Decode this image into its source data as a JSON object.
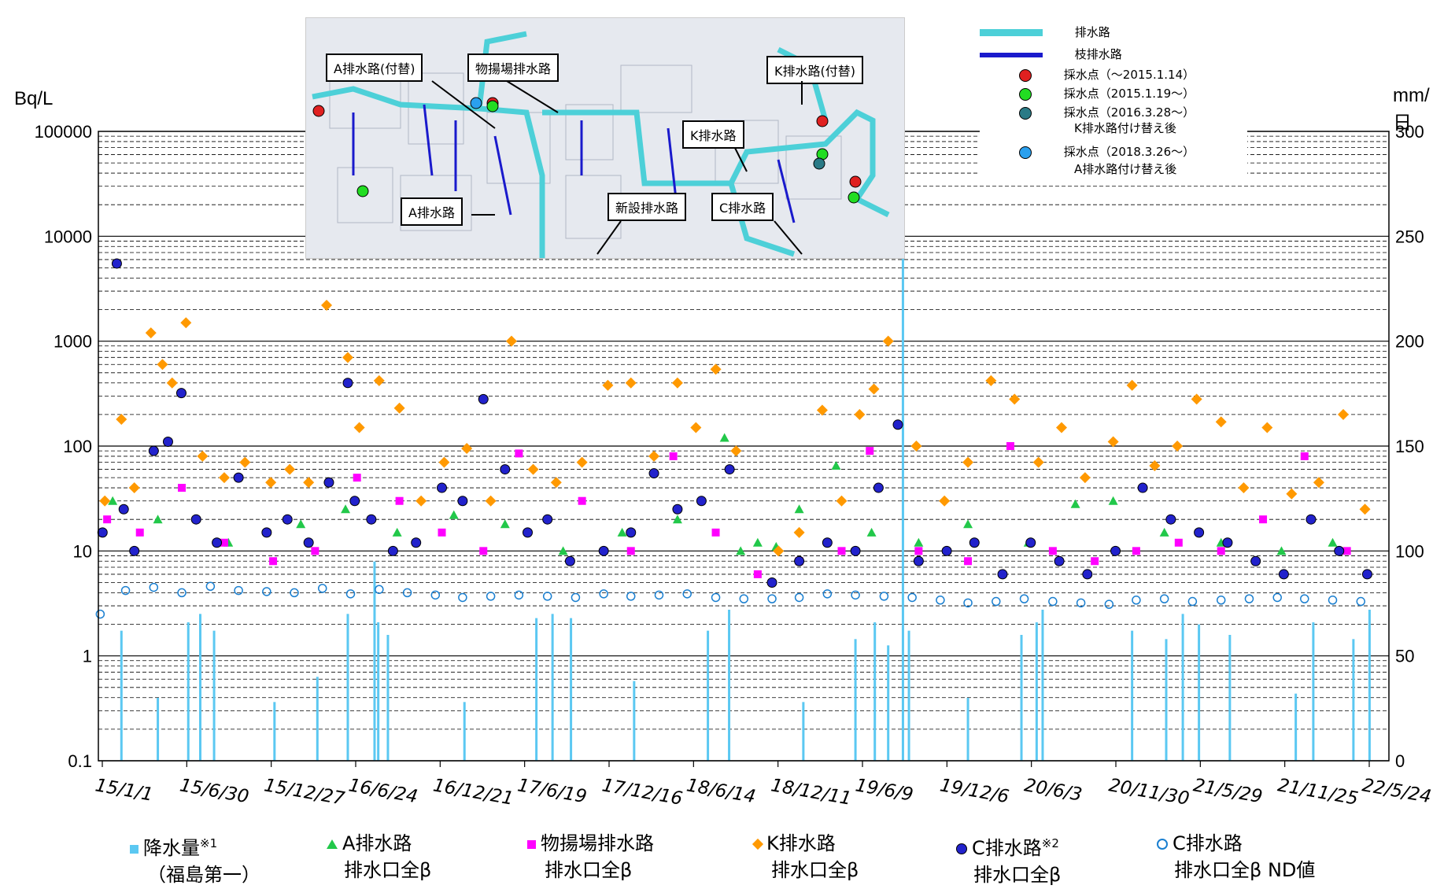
{
  "axes": {
    "left_unit": "Bq/L",
    "right_unit": "mm/日",
    "left_ticks": [
      "0.1",
      "1",
      "10",
      "100",
      "1000",
      "10000",
      "100000"
    ],
    "right_ticks": [
      "0",
      "50",
      "100",
      "150",
      "200",
      "250",
      "300"
    ],
    "x_ticks": [
      "15/1/1",
      "15/6/30",
      "15/12/27",
      "16/6/24",
      "16/12/21",
      "17/6/19",
      "17/12/16",
      "18/6/14",
      "18/12/11",
      "19/6/9",
      "19/12/6",
      "20/6/3",
      "20/11/30",
      "21/5/29",
      "21/11/25",
      "22/5/24"
    ]
  },
  "legend": [
    {
      "line1": "降水量",
      "sup": "※1",
      "line2": "（福島第一）",
      "color": "#5bc8f2",
      "shape": "square"
    },
    {
      "line1": "A排水路",
      "sup": "",
      "line2": "排水口全β",
      "color": "#22c84a",
      "shape": "triangle"
    },
    {
      "line1": "物揚場排水路",
      "sup": "",
      "line2": "排水口全β",
      "color": "#ff00ff",
      "shape": "square"
    },
    {
      "line1": "K排水路",
      "sup": "",
      "line2": "排水口全β",
      "color": "#ff9900",
      "shape": "diamond"
    },
    {
      "line1": "C排水路",
      "sup": "※2",
      "line2": "排水口全β",
      "color": "#2222cc",
      "shape": "circle"
    },
    {
      "line1": "C排水路",
      "sup": "",
      "line2": "排水口全β ND値",
      "color": "#1a7fd0",
      "shape": "circle-open"
    }
  ],
  "inset": {
    "callouts": [
      "A排水路(付替)",
      "物揚場排水路",
      "K排水路(付替)",
      "K排水路",
      "A排水路",
      "新設排水路",
      "C排水路"
    ],
    "legend": [
      {
        "label": "排水路",
        "color": "#4dd0d8",
        "kind": "line"
      },
      {
        "label": "枝排水路",
        "color": "#1a1acc",
        "kind": "line"
      },
      {
        "label": "採水点（～2015.1.14）",
        "color": "#e02020",
        "kind": "dot"
      },
      {
        "label": "採水点（2015.1.19～）",
        "color": "#22dd22",
        "kind": "dot"
      },
      {
        "label": "採水点（2016.3.28～）",
        "sub": "K排水路付け替え後",
        "color": "#2a7a86",
        "kind": "dot"
      },
      {
        "label": "採水点（2018.3.26～）",
        "sub": "A排水路付け替え後",
        "color": "#2aa0ee",
        "kind": "dot"
      }
    ]
  },
  "chart_data": {
    "type": "scatter",
    "y_scale": "log",
    "ylim": [
      0.1,
      100000
    ],
    "y2lim": [
      0,
      300
    ],
    "xlim": [
      "2015-01-01",
      "2022-08-31"
    ],
    "series": [
      {
        "name": "降水量",
        "axis": "right",
        "type": "bar",
        "color": "#5bc8f2",
        "x": [
          "2015-02-20",
          "2015-05-10",
          "2015-07-15",
          "2015-08-10",
          "2015-09-09",
          "2016-01-18",
          "2016-04-20",
          "2016-06-25",
          "2016-08-22",
          "2016-08-30",
          "2016-09-20",
          "2017-03-05",
          "2017-08-08",
          "2017-09-12",
          "2017-10-22",
          "2018-03-08",
          "2018-08-15",
          "2018-09-30",
          "2019-03-10",
          "2019-07-01",
          "2019-08-12",
          "2019-09-10",
          "2019-10-12",
          "2019-10-25",
          "2020-03-01",
          "2020-06-25",
          "2020-07-28",
          "2020-08-10",
          "2021-02-20",
          "2021-05-05",
          "2021-06-10",
          "2021-07-15",
          "2021-09-20",
          "2022-02-10",
          "2022-03-20",
          "2022-06-15",
          "2022-07-20"
        ],
        "values": [
          62,
          30,
          66,
          70,
          62,
          28,
          40,
          70,
          95,
          66,
          60,
          28,
          68,
          70,
          68,
          38,
          62,
          72,
          28,
          58,
          66,
          55,
          250,
          62,
          30,
          60,
          66,
          72,
          62,
          58,
          70,
          65,
          60,
          32,
          66,
          58,
          72
        ]
      },
      {
        "name": "A排水路 排水口全β",
        "axis": "left",
        "type": "scatter",
        "color": "#22c84a",
        "marker": "triangle",
        "x": [
          "2015-02-01",
          "2015-05-10",
          "2015-10-10",
          "2016-03-15",
          "2016-06-20",
          "2016-10-10",
          "2017-02-10",
          "2017-06-01",
          "2017-10-05",
          "2018-02-10",
          "2018-06-10",
          "2018-09-20",
          "2018-10-25",
          "2018-12-01",
          "2019-01-10",
          "2019-03-01",
          "2019-05-20",
          "2019-08-05",
          "2019-11-15",
          "2020-03-01",
          "2020-07-10",
          "2020-10-20",
          "2021-01-10",
          "2021-05-01",
          "2021-09-01",
          "2022-01-10",
          "2022-05-01"
        ],
        "values": [
          30,
          20,
          12,
          18,
          25,
          15,
          22,
          18,
          10,
          15,
          20,
          120,
          10,
          12,
          11,
          25,
          65,
          15,
          12,
          18,
          12,
          28,
          30,
          15,
          12,
          10,
          12
        ]
      },
      {
        "name": "物揚場排水路 排水口全β",
        "axis": "left",
        "type": "scatter",
        "color": "#ff00ff",
        "marker": "square",
        "x": [
          "2015-01-20",
          "2015-04-01",
          "2015-07-01",
          "2015-10-01",
          "2016-01-15",
          "2016-04-15",
          "2016-07-15",
          "2016-10-15",
          "2017-01-15",
          "2017-04-15",
          "2017-07-01",
          "2017-11-15",
          "2018-03-01",
          "2018-06-01",
          "2018-09-01",
          "2018-12-01",
          "2019-03-01",
          "2019-06-01",
          "2019-08-01",
          "2019-11-15",
          "2020-03-01",
          "2020-06-01",
          "2020-09-01",
          "2020-12-01",
          "2021-03-01",
          "2021-06-01",
          "2021-09-01",
          "2021-12-01",
          "2022-03-01",
          "2022-06-01"
        ],
        "values": [
          20,
          15,
          40,
          12,
          8,
          10,
          50,
          30,
          15,
          10,
          85,
          30,
          10,
          80,
          15,
          6,
          8,
          10,
          90,
          10,
          8,
          100,
          10,
          8,
          10,
          12,
          10,
          20,
          80,
          10
        ]
      },
      {
        "name": "K排水路 排水口全β",
        "axis": "left",
        "type": "scatter",
        "color": "#ff9900",
        "marker": "diamond",
        "x": [
          "2015-01-15",
          "2015-02-20",
          "2015-03-20",
          "2015-04-25",
          "2015-05-20",
          "2015-06-10",
          "2015-07-10",
          "2015-08-15",
          "2015-10-01",
          "2015-11-15",
          "2016-01-10",
          "2016-02-20",
          "2016-04-01",
          "2016-05-10",
          "2016-06-25",
          "2016-07-20",
          "2016-09-01",
          "2016-10-15",
          "2016-12-01",
          "2017-01-20",
          "2017-03-10",
          "2017-05-01",
          "2017-06-15",
          "2017-08-01",
          "2017-09-20",
          "2017-11-15",
          "2018-01-10",
          "2018-03-01",
          "2018-04-20",
          "2018-06-10",
          "2018-07-20",
          "2018-09-01",
          "2018-10-15",
          "2019-01-15",
          "2019-03-01",
          "2019-04-20",
          "2019-06-01",
          "2019-07-10",
          "2019-08-10",
          "2019-09-10",
          "2019-11-10",
          "2020-01-10",
          "2020-03-01",
          "2020-04-20",
          "2020-06-10",
          "2020-08-01",
          "2020-09-20",
          "2020-11-10",
          "2021-01-10",
          "2021-02-20",
          "2021-04-10",
          "2021-05-29",
          "2021-07-10",
          "2021-09-01",
          "2021-10-20",
          "2021-12-10",
          "2022-02-01",
          "2022-04-01",
          "2022-05-24",
          "2022-07-10"
        ],
        "values": [
          30,
          180,
          40,
          1200,
          600,
          400,
          1500,
          80,
          50,
          70,
          45,
          60,
          45,
          2200,
          700,
          150,
          420,
          230,
          30,
          70,
          95,
          30,
          1000,
          60,
          45,
          70,
          380,
          400,
          80,
          400,
          150,
          540,
          90,
          10,
          15,
          220,
          30,
          200,
          350,
          1000,
          100,
          30,
          70,
          420,
          280,
          70,
          150,
          50,
          110,
          380,
          65,
          100,
          280,
          170,
          40,
          150,
          35,
          45,
          200,
          25
        ]
      },
      {
        "name": "C排水路 排水口全β",
        "axis": "left",
        "type": "scatter",
        "color": "#2222cc",
        "marker": "circle",
        "x": [
          "2015-01-10",
          "2015-02-10",
          "2015-02-25",
          "2015-03-20",
          "2015-05-01",
          "2015-06-01",
          "2015-06-30",
          "2015-08-01",
          "2015-09-15",
          "2015-11-01",
          "2016-01-01",
          "2016-02-15",
          "2016-04-01",
          "2016-05-15",
          "2016-06-25",
          "2016-07-10",
          "2016-08-15",
          "2016-10-01",
          "2016-11-20",
          "2017-01-15",
          "2017-03-01",
          "2017-04-15",
          "2017-06-01",
          "2017-07-20",
          "2017-09-01",
          "2017-10-20",
          "2018-01-01",
          "2018-03-01",
          "2018-04-20",
          "2018-06-10",
          "2018-08-01",
          "2018-10-01",
          "2019-01-01",
          "2019-03-01",
          "2019-05-01",
          "2019-07-01",
          "2019-08-20",
          "2019-10-01",
          "2019-11-15",
          "2020-01-15",
          "2020-03-15",
          "2020-05-15",
          "2020-07-15",
          "2020-09-15",
          "2020-11-15",
          "2021-01-15",
          "2021-03-15",
          "2021-05-15",
          "2021-07-15",
          "2021-09-15",
          "2021-11-15",
          "2022-01-15",
          "2022-03-15",
          "2022-05-15",
          "2022-07-15"
        ],
        "values": [
          15,
          5500,
          25,
          10,
          90,
          110,
          320,
          20,
          12,
          50,
          15,
          20,
          12,
          45,
          400,
          30,
          20,
          10,
          12,
          40,
          30,
          280,
          60,
          15,
          20,
          8,
          10,
          15,
          55,
          25,
          30,
          60,
          5,
          8,
          12,
          10,
          40,
          160,
          8,
          10,
          12,
          6,
          12,
          8,
          6,
          10,
          40,
          20,
          15,
          12,
          8,
          6,
          20,
          10,
          6
        ]
      },
      {
        "name": "C排水路 排水口全β ND値",
        "axis": "left",
        "type": "scatter",
        "color": "#1a7fd0",
        "marker": "circle-open",
        "x": [
          "2015-01-05",
          "2015-03-01",
          "2015-05-01",
          "2015-07-01",
          "2015-09-01",
          "2015-11-01",
          "2016-01-01",
          "2016-03-01",
          "2016-05-01",
          "2016-07-01",
          "2016-09-01",
          "2016-11-01",
          "2017-01-01",
          "2017-03-01",
          "2017-05-01",
          "2017-07-01",
          "2017-09-01",
          "2017-11-01",
          "2018-01-01",
          "2018-03-01",
          "2018-05-01",
          "2018-07-01",
          "2018-09-01",
          "2018-11-01",
          "2019-01-01",
          "2019-03-01",
          "2019-05-01",
          "2019-07-01",
          "2019-09-01",
          "2019-11-01",
          "2020-01-01",
          "2020-03-01",
          "2020-05-01",
          "2020-07-01",
          "2020-09-01",
          "2020-11-01",
          "2021-01-01",
          "2021-03-01",
          "2021-05-01",
          "2021-07-01",
          "2021-09-01",
          "2021-11-01",
          "2022-01-01",
          "2022-03-01",
          "2022-05-01",
          "2022-07-01"
        ],
        "values": [
          2.5,
          4.2,
          4.5,
          4.0,
          4.6,
          4.2,
          4.1,
          4.0,
          4.4,
          3.9,
          4.3,
          4.0,
          3.8,
          3.6,
          3.7,
          3.8,
          3.7,
          3.6,
          3.9,
          3.7,
          3.8,
          3.9,
          3.6,
          3.5,
          3.5,
          3.6,
          3.9,
          3.8,
          3.7,
          3.6,
          3.4,
          3.2,
          3.3,
          3.5,
          3.3,
          3.2,
          3.1,
          3.4,
          3.5,
          3.3,
          3.4,
          3.5,
          3.6,
          3.5,
          3.4,
          3.3
        ]
      }
    ]
  }
}
